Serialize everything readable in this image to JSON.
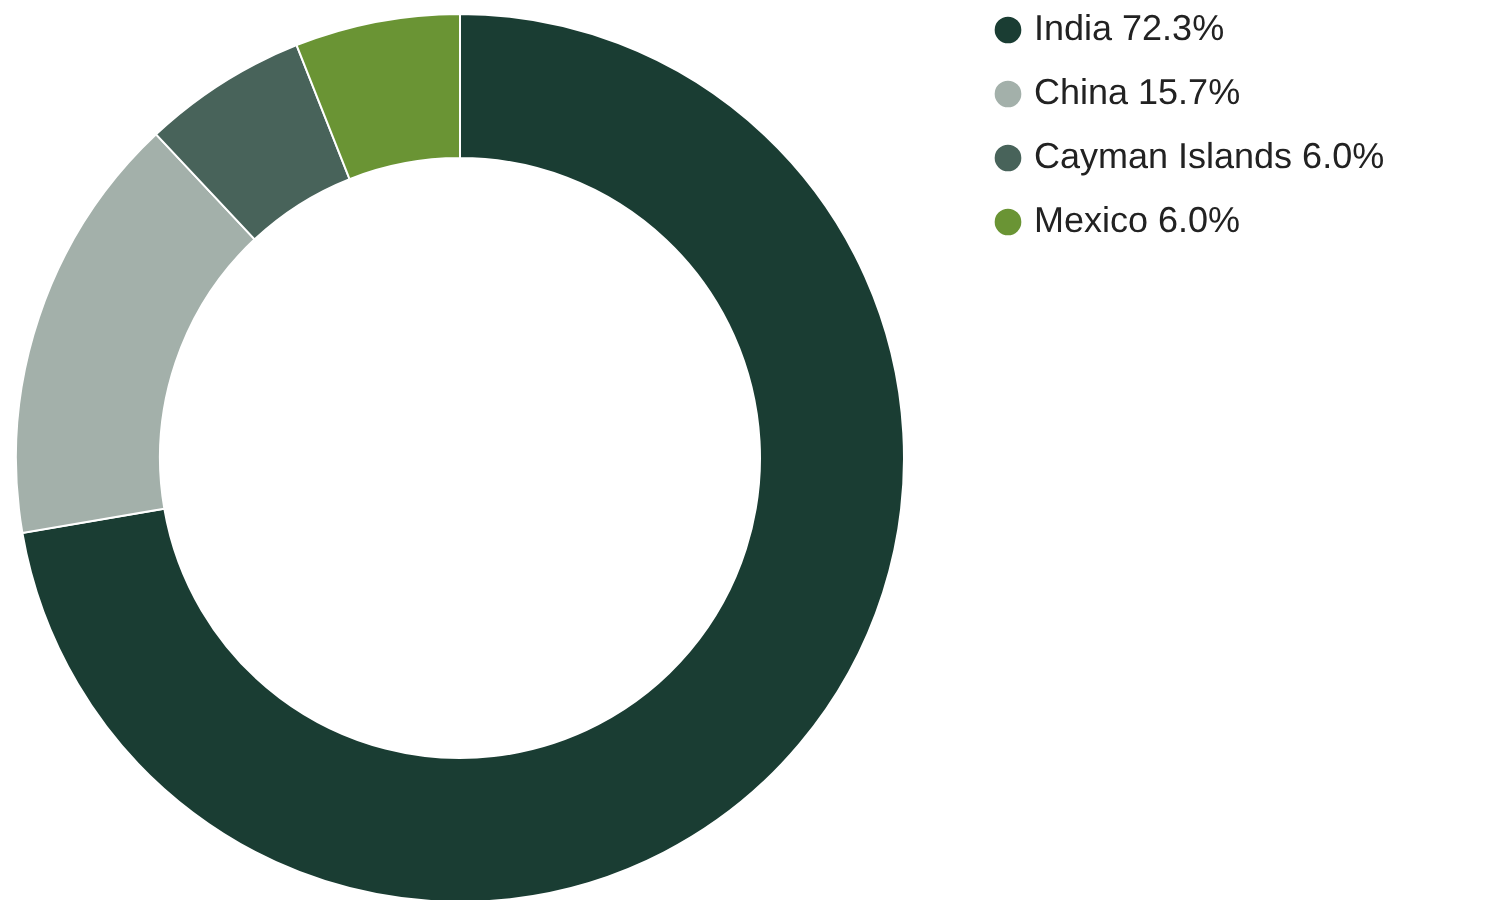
{
  "chart_data": {
    "type": "donut",
    "categories": [
      "India",
      "China",
      "Cayman Islands",
      "Mexico"
    ],
    "values": [
      72.3,
      15.7,
      6.0,
      6.0
    ],
    "value_labels": [
      "72.3%",
      "15.7%",
      "6.0%",
      "6.0%"
    ],
    "colors": [
      "#1a3d33",
      "#a3b0aa",
      "#48635a",
      "#6a9434"
    ],
    "legend": "right"
  }
}
